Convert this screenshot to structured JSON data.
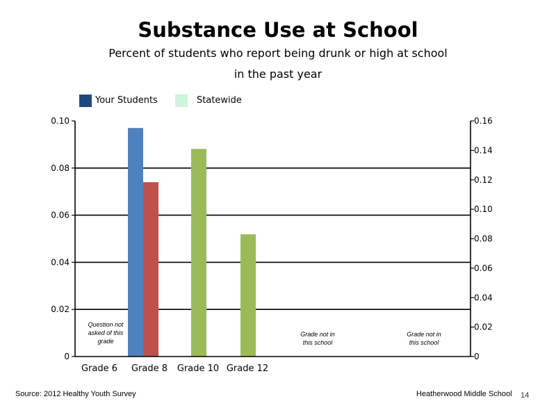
{
  "page": {
    "title": "Substance Use at School",
    "subtitle_line1": "Percent of students who report being drunk or high at school",
    "subtitle_line2": "in the past year",
    "source": "Source: 2012 Healthy Youth Survey",
    "school": "Heatherwood Middle  School",
    "page_number": "14"
  },
  "legend": [
    {
      "label": "Your Students",
      "color": "#1f497d"
    },
    {
      "label": "Statewide",
      "color": "#ccf5d9"
    }
  ],
  "chart_data": {
    "type": "bar",
    "categories": [
      "Grade 6",
      "Grade 8",
      "Grade 10",
      "Grade 12"
    ],
    "series": [
      {
        "name": "Your Students",
        "axis": "left",
        "color": "#4f81bd",
        "values": [
          null,
          0.097,
          null,
          null
        ]
      },
      {
        "name": "Statewide",
        "axis": "left",
        "color": "#c0504d",
        "values": [
          null,
          0.074,
          null,
          null
        ]
      },
      {
        "axis": "right",
        "color": "#9bbb59",
        "values": [
          null,
          null,
          0.141,
          0.083
        ]
      }
    ],
    "y_left": {
      "ylim": [
        0,
        0.1
      ],
      "ticks": [
        "0",
        "0.02",
        "0.04",
        "0.06",
        "0.08",
        "0.10"
      ]
    },
    "y_right": {
      "ylim": [
        0,
        0.16
      ],
      "ticks": [
        "0",
        "0.02",
        "0.04",
        "0.06",
        "0.08",
        "0.10",
        "0.12",
        "0.14",
        "0.16"
      ]
    },
    "gridlines": [
      0.02,
      0.04,
      0.06,
      0.08
    ],
    "notes": [
      {
        "category": "Grade 6",
        "lines": [
          "Question not",
          "asked of this",
          "grade"
        ]
      },
      {
        "category": "Grade 12 right",
        "lines": [
          "Grade not in",
          "this school"
        ]
      },
      {
        "category": "Extra right",
        "lines": [
          "Grade not in",
          "this school"
        ]
      }
    ],
    "xlabel": "",
    "ylabel": ""
  }
}
